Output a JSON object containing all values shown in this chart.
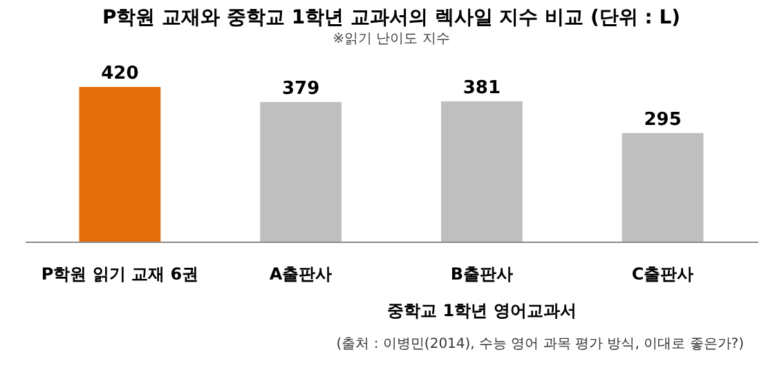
{
  "chart_data": {
    "type": "bar",
    "title": "P학원 교재와 중학교 1학년 교과서의 렉사일 지수 비교 (단위 : L)",
    "subtitle": "※읽기 난이도 지수",
    "categories": [
      "P학원 읽기 교재 6권",
      "A출판사",
      "B출판사",
      "C출판사"
    ],
    "values": [
      420,
      379,
      381,
      295
    ],
    "colors": [
      "#e46c0a",
      "#bfbfbf",
      "#bfbfbf",
      "#bfbfbf"
    ],
    "data_labels": true,
    "annotations": [
      "중학교 1학년 영어교과서",
      "(출처 : 이병민(2014), 수능 영어 과목 평가 방식, 이대로 좋은가?)"
    ]
  }
}
